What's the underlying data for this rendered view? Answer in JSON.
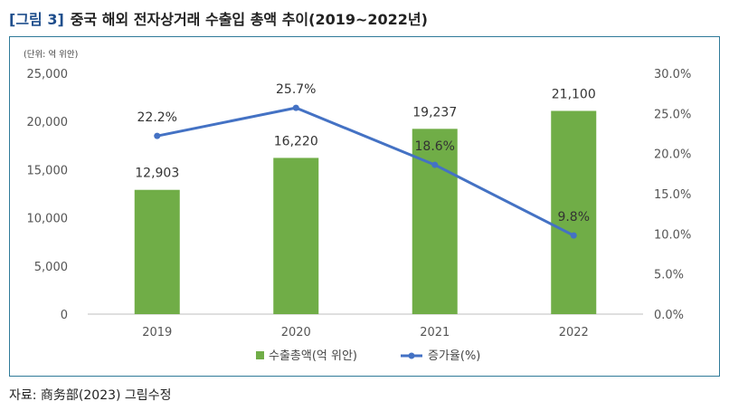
{
  "header": {
    "figure_label": "[그림 3]",
    "title": "중국 해외 전자상거래 수출입 총액 추이(2019~2022년)"
  },
  "unit_note": "(단위: 억 위안)",
  "source": "자료: 商务部(2023) 그림수정",
  "chart_data": {
    "type": "bar+line",
    "categories": [
      "2019",
      "2020",
      "2021",
      "2022"
    ],
    "series": [
      {
        "name": "수출총액(억 위안)",
        "type": "bar",
        "axis": "left",
        "values": [
          12903,
          16220,
          19237,
          21100
        ],
        "labels": [
          "12,903",
          "16,220",
          "19,237",
          "21,100"
        ],
        "color": "#70ad47"
      },
      {
        "name": "증가율(%)",
        "type": "line",
        "axis": "right",
        "values": [
          22.2,
          25.7,
          18.6,
          9.8
        ],
        "labels": [
          "22.2%",
          "25.7%",
          "18.6%",
          "9.8%"
        ],
        "color": "#4472c4"
      }
    ],
    "y_left": {
      "range": [
        0,
        25000
      ],
      "ticks": [
        0,
        5000,
        10000,
        15000,
        20000,
        25000
      ],
      "tick_labels": [
        "0",
        "5,000",
        "10,000",
        "15,000",
        "20,000",
        "25,000"
      ]
    },
    "y_right": {
      "range": [
        0,
        30
      ],
      "ticks": [
        0,
        5,
        10,
        15,
        20,
        25,
        30
      ],
      "tick_labels": [
        "0.0%",
        "5.0%",
        "10.0%",
        "15.0%",
        "20.0%",
        "25.0%",
        "30.0%"
      ]
    },
    "grid": false,
    "legend_position": "bottom"
  }
}
